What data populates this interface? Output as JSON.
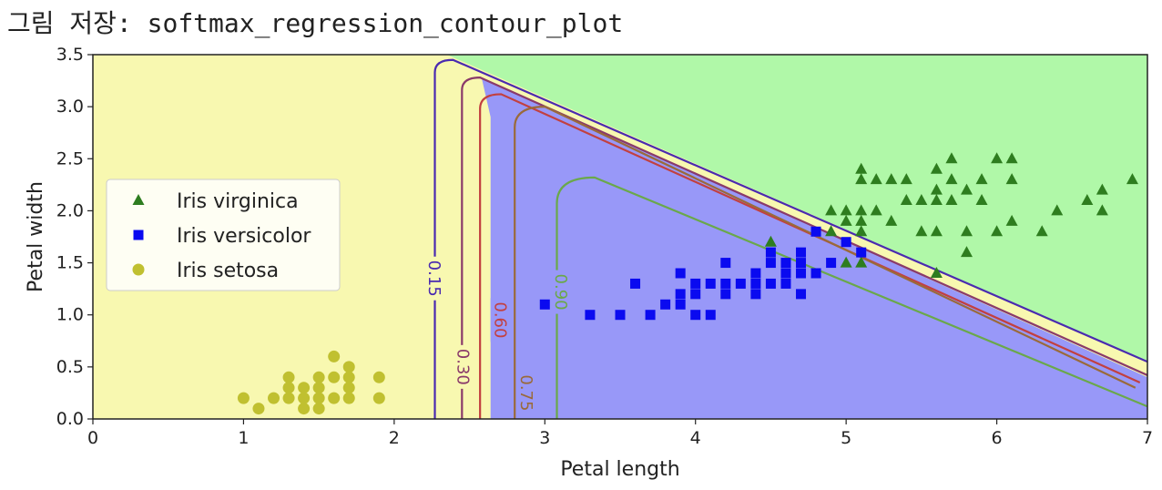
{
  "caption": "그림 저장: softmax_regression_contour_plot",
  "chart_data": {
    "type": "scatter",
    "xlabel": "Petal length",
    "ylabel": "Petal width",
    "xlim": [
      0,
      7
    ],
    "ylim": [
      0,
      3.5
    ],
    "xticks": [
      "0",
      "1",
      "2",
      "3",
      "4",
      "5",
      "6",
      "7"
    ],
    "yticks": [
      "0.0",
      "0.5",
      "1.0",
      "1.5",
      "2.0",
      "2.5",
      "3.0",
      "3.5"
    ],
    "legend_position": "center-left",
    "region_colors": {
      "setosa": "#f8f8b0",
      "versicolor": "#9898f8",
      "virginica": "#b0f8a8"
    },
    "contour_levels": [
      {
        "label": "0.15",
        "color": "#4a2ab0"
      },
      {
        "label": "0.30",
        "color": "#8a3a6a"
      },
      {
        "label": "0.60",
        "color": "#c24040"
      },
      {
        "label": "0.75",
        "color": "#9a6a3a"
      },
      {
        "label": "0.90",
        "color": "#6aa84a"
      }
    ],
    "series": [
      {
        "name": "Iris virginica",
        "marker": "triangle",
        "color": "#2e7d1f",
        "points": [
          [
            4.5,
            1.7
          ],
          [
            4.9,
            2.0
          ],
          [
            4.9,
            1.8
          ],
          [
            5.0,
            2.0
          ],
          [
            5.0,
            1.9
          ],
          [
            5.0,
            1.5
          ],
          [
            5.1,
            2.3
          ],
          [
            5.1,
            2.0
          ],
          [
            5.1,
            1.9
          ],
          [
            5.1,
            1.8
          ],
          [
            5.1,
            1.5
          ],
          [
            5.1,
            2.4
          ],
          [
            5.2,
            2.3
          ],
          [
            5.2,
            2.0
          ],
          [
            5.3,
            2.3
          ],
          [
            5.3,
            1.9
          ],
          [
            5.4,
            2.3
          ],
          [
            5.4,
            2.1
          ],
          [
            5.5,
            2.1
          ],
          [
            5.5,
            1.8
          ],
          [
            5.6,
            2.4
          ],
          [
            5.6,
            2.2
          ],
          [
            5.6,
            2.1
          ],
          [
            5.6,
            1.8
          ],
          [
            5.6,
            1.4
          ],
          [
            5.7,
            2.5
          ],
          [
            5.7,
            2.3
          ],
          [
            5.7,
            2.1
          ],
          [
            5.8,
            2.2
          ],
          [
            5.8,
            1.8
          ],
          [
            5.8,
            1.6
          ],
          [
            5.9,
            2.3
          ],
          [
            5.9,
            2.1
          ],
          [
            6.0,
            2.5
          ],
          [
            6.0,
            1.8
          ],
          [
            6.1,
            2.5
          ],
          [
            6.1,
            2.3
          ],
          [
            6.1,
            1.9
          ],
          [
            6.3,
            1.8
          ],
          [
            6.4,
            2.0
          ],
          [
            6.6,
            2.1
          ],
          [
            6.7,
            2.2
          ],
          [
            6.7,
            2.0
          ],
          [
            6.9,
            2.3
          ]
        ]
      },
      {
        "name": "Iris versicolor",
        "marker": "square",
        "color": "#0a0af0",
        "points": [
          [
            3.0,
            1.1
          ],
          [
            3.3,
            1.0
          ],
          [
            3.5,
            1.0
          ],
          [
            3.6,
            1.3
          ],
          [
            3.7,
            1.0
          ],
          [
            3.8,
            1.1
          ],
          [
            3.9,
            1.4
          ],
          [
            3.9,
            1.2
          ],
          [
            3.9,
            1.1
          ],
          [
            4.0,
            1.3
          ],
          [
            4.0,
            1.2
          ],
          [
            4.0,
            1.0
          ],
          [
            4.1,
            1.3
          ],
          [
            4.1,
            1.0
          ],
          [
            4.2,
            1.5
          ],
          [
            4.2,
            1.3
          ],
          [
            4.2,
            1.2
          ],
          [
            4.3,
            1.3
          ],
          [
            4.4,
            1.4
          ],
          [
            4.4,
            1.3
          ],
          [
            4.4,
            1.2
          ],
          [
            4.5,
            1.6
          ],
          [
            4.5,
            1.5
          ],
          [
            4.5,
            1.3
          ],
          [
            4.6,
            1.5
          ],
          [
            4.6,
            1.4
          ],
          [
            4.6,
            1.3
          ],
          [
            4.7,
            1.6
          ],
          [
            4.7,
            1.5
          ],
          [
            4.7,
            1.4
          ],
          [
            4.7,
            1.2
          ],
          [
            4.8,
            1.8
          ],
          [
            4.8,
            1.4
          ],
          [
            4.9,
            1.5
          ],
          [
            5.0,
            1.7
          ],
          [
            5.1,
            1.6
          ]
        ]
      },
      {
        "name": "Iris setosa",
        "marker": "circle",
        "color": "#c0c030",
        "points": [
          [
            1.0,
            0.2
          ],
          [
            1.1,
            0.1
          ],
          [
            1.2,
            0.2
          ],
          [
            1.3,
            0.4
          ],
          [
            1.3,
            0.3
          ],
          [
            1.3,
            0.2
          ],
          [
            1.4,
            0.3
          ],
          [
            1.4,
            0.2
          ],
          [
            1.4,
            0.1
          ],
          [
            1.5,
            0.4
          ],
          [
            1.5,
            0.3
          ],
          [
            1.5,
            0.2
          ],
          [
            1.5,
            0.1
          ],
          [
            1.6,
            0.6
          ],
          [
            1.6,
            0.4
          ],
          [
            1.6,
            0.2
          ],
          [
            1.7,
            0.5
          ],
          [
            1.7,
            0.4
          ],
          [
            1.7,
            0.3
          ],
          [
            1.7,
            0.2
          ],
          [
            1.9,
            0.4
          ],
          [
            1.9,
            0.2
          ]
        ]
      }
    ]
  }
}
